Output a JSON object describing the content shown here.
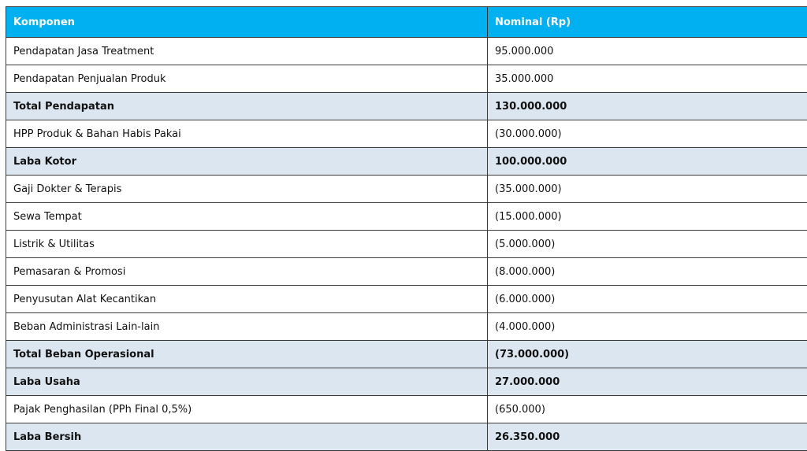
{
  "table": {
    "headers": [
      "Komponen",
      "Nominal (Rp)"
    ],
    "rows": [
      {
        "label": "Pendapatan Jasa Treatment",
        "value": "95.000.000",
        "subtotal": false
      },
      {
        "label": "Pendapatan Penjualan Produk",
        "value": "35.000.000",
        "subtotal": false
      },
      {
        "label": "Total Pendapatan",
        "value": "130.000.000",
        "subtotal": true
      },
      {
        "label": "HPP Produk & Bahan Habis Pakai",
        "value": "(30.000.000)",
        "subtotal": false
      },
      {
        "label": "Laba Kotor",
        "value": "100.000.000",
        "subtotal": true
      },
      {
        "label": "Gaji Dokter & Terapis",
        "value": "(35.000.000)",
        "subtotal": false
      },
      {
        "label": "Sewa Tempat",
        "value": "(15.000.000)",
        "subtotal": false
      },
      {
        "label": "Listrik & Utilitas",
        "value": "(5.000.000)",
        "subtotal": false
      },
      {
        "label": "Pemasaran & Promosi",
        "value": "(8.000.000)",
        "subtotal": false
      },
      {
        "label": "Penyusutan Alat Kecantikan",
        "value": "(6.000.000)",
        "subtotal": false
      },
      {
        "label": "Beban Administrasi Lain-lain",
        "value": "(4.000.000)",
        "subtotal": false
      },
      {
        "label": "Total Beban Operasional",
        "value": "(73.000.000)",
        "subtotal": true
      },
      {
        "label": "Laba Usaha",
        "value": "27.000.000",
        "subtotal": true
      },
      {
        "label": "Pajak Penghasilan (PPh Final 0,5%)",
        "value": "(650.000)",
        "subtotal": false
      },
      {
        "label": "Laba Bersih",
        "value": "26.350.000",
        "subtotal": true
      }
    ]
  },
  "colors": {
    "header_bg": "#00b0f0",
    "header_text": "#ffffff",
    "subtotal_bg": "#dce6f1",
    "border": "#3a3a3a"
  }
}
